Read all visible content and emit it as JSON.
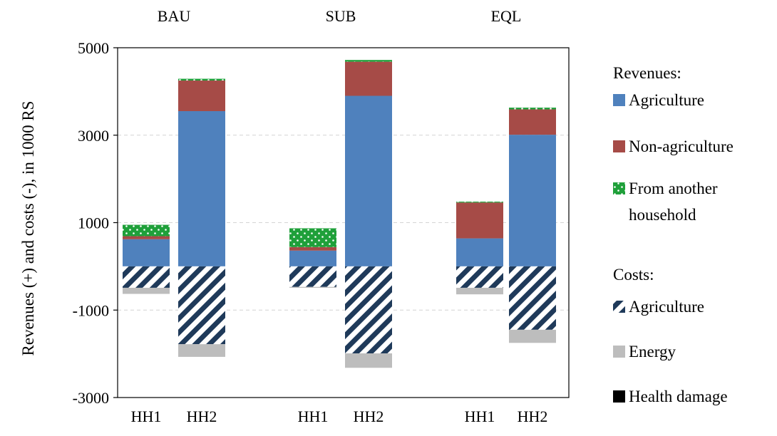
{
  "chart_data": {
    "type": "bar",
    "stacked": true,
    "ylabel": "Revenues (+) and costs (-), in 1000 RS",
    "ylim": [
      -3000,
      5000
    ],
    "yticks": [
      5000,
      3000,
      1000,
      -1000,
      -3000
    ],
    "y_tick_labels": [
      "5000",
      "3000",
      "1000",
      "-1000",
      "-3000"
    ],
    "grid": true,
    "groups": [
      {
        "label": "BAU",
        "categories": [
          "HH1",
          "HH2"
        ]
      },
      {
        "label": "SUB",
        "categories": [
          "HH1",
          "HH2"
        ]
      },
      {
        "label": "EQL",
        "categories": [
          "HH1",
          "HH2"
        ]
      }
    ],
    "categories": [
      "HH1",
      "HH2",
      "HH1",
      "HH2",
      "HH1",
      "HH2"
    ],
    "series": [
      {
        "name": "Agriculture",
        "kind": "revenue",
        "color": "#4f81bd",
        "pattern": "solid",
        "values": [
          620,
          3550,
          360,
          3900,
          640,
          3010
        ]
      },
      {
        "name": "Non-agriculture",
        "kind": "revenue",
        "color": "#a64b47",
        "pattern": "solid",
        "values": [
          70,
          700,
          80,
          780,
          820,
          580
        ]
      },
      {
        "name": "From another household",
        "kind": "revenue",
        "color": "#1fa03a",
        "pattern": "dots",
        "values": [
          260,
          40,
          430,
          40,
          20,
          40
        ]
      },
      {
        "name": "Agriculture",
        "kind": "cost",
        "color": "#1f3a5a",
        "pattern": "diagonal",
        "values": [
          -490,
          -1780,
          -470,
          -1990,
          -490,
          -1450
        ]
      },
      {
        "name": "Energy",
        "kind": "cost",
        "color": "#bdbdbd",
        "pattern": "solid",
        "values": [
          -140,
          -290,
          -20,
          -330,
          -150,
          -300
        ]
      },
      {
        "name": "Health damage",
        "kind": "cost",
        "color": "#000000",
        "pattern": "solid",
        "values": [
          0,
          0,
          0,
          0,
          0,
          0
        ]
      }
    ],
    "legend": {
      "position": "right",
      "revenues_title": "Revenues:",
      "costs_title": "Costs:",
      "revenue_items": [
        {
          "label": "Agriculture",
          "color": "#4f81bd",
          "pattern": "solid"
        },
        {
          "label": "Non-agriculture",
          "color": "#a64b47",
          "pattern": "solid"
        },
        {
          "label": [
            "From another",
            "household"
          ],
          "color": "#1fa03a",
          "pattern": "dots"
        }
      ],
      "cost_items": [
        {
          "label": "Agriculture",
          "color": "#1f3a5a",
          "pattern": "diagonal"
        },
        {
          "label": "Energy",
          "color": "#bdbdbd",
          "pattern": "solid"
        },
        {
          "label": "Health damage",
          "color": "#000000",
          "pattern": "solid"
        }
      ]
    }
  }
}
